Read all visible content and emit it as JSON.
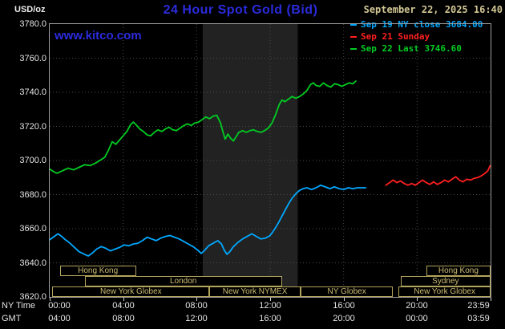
{
  "header": {
    "unit_label": "USD/oz",
    "title": "24 Hour Spot Gold (Bid)",
    "datetime": "September 22, 2025 16:40",
    "watermark": "www.kitco.com",
    "legend": [
      {
        "label": "Sep 19 NY close 3684.00",
        "color": "#00a8ff"
      },
      {
        "label": "Sep 21 Sunday",
        "color": "#ff1f1f"
      },
      {
        "label": "Sep 22 Last 3746.60",
        "color": "#00cc22"
      }
    ]
  },
  "colors": {
    "background": "#000000",
    "title_blue": "#2b2bdd",
    "link_blue": "#2b2bdd",
    "date_tan": "#d2c694",
    "axis_text": "#e4e4e4",
    "grid": "#4a4a4a",
    "plot_border": "#9f9f9f",
    "band": "#222222",
    "session_border": "#b3a45c",
    "session_text": "#cdbd72"
  },
  "axes": {
    "ny_label": "NY Time",
    "gmt_label": "GMT",
    "y_ticks": [
      {
        "label": "3780.0",
        "value": 3780
      },
      {
        "label": "3760.0",
        "value": 3760
      },
      {
        "label": "3740.0",
        "value": 3740
      },
      {
        "label": "3720.0",
        "value": 3720
      },
      {
        "label": "3700.0",
        "value": 3700
      },
      {
        "label": "3680.0",
        "value": 3680
      },
      {
        "label": "3660.0",
        "value": 3660
      },
      {
        "label": "3640.0",
        "value": 3640
      },
      {
        "label": "3620.0",
        "value": 3620
      }
    ],
    "x_ticks": [
      {
        "hour": 0,
        "ny": "00:00",
        "gmt": "04:00"
      },
      {
        "hour": 4,
        "ny": "04:00",
        "gmt": "08:00"
      },
      {
        "hour": 8,
        "ny": "08:00",
        "gmt": "12:00"
      },
      {
        "hour": 12,
        "ny": "12:00",
        "gmt": "16:00"
      },
      {
        "hour": 16,
        "ny": "16:00",
        "gmt": "20:00"
      },
      {
        "hour": 20,
        "ny": "20:00",
        "gmt": "00:00"
      },
      {
        "hour": 24,
        "ny": "23:59",
        "gmt": "03:59"
      }
    ]
  },
  "sessions": [
    {
      "row": 0,
      "label": "Hong Kong",
      "start_hour": 0.55,
      "end_hour": 4.7
    },
    {
      "row": 0,
      "label": "Hong Kong",
      "start_hour": 20.5,
      "end_hour": 24
    },
    {
      "row": 1,
      "label": "London",
      "start_hour": 1.9,
      "end_hour": 12.65
    },
    {
      "row": 1,
      "label": "Sydney",
      "start_hour": 19.1,
      "end_hour": 24
    },
    {
      "row": 2,
      "label": "New York Globex",
      "start_hour": 0.15,
      "end_hour": 8.7
    },
    {
      "row": 2,
      "label": "New York NYMEX",
      "start_hour": 8.7,
      "end_hour": 13.65
    },
    {
      "row": 2,
      "label": "NY Globex",
      "start_hour": 13.65,
      "end_hour": 18.7
    },
    {
      "row": 2,
      "label": "New York Globex",
      "start_hour": 19.0,
      "end_hour": 24
    }
  ],
  "chart_data": {
    "type": "line",
    "title": "24 Hour Spot Gold (Bid)",
    "ylabel": "USD/oz",
    "xlabel": "NY Time",
    "x_hours_range": [
      0,
      24
    ],
    "y_range": [
      3620,
      3780
    ],
    "y_tick_step": 20,
    "x_tick_step_hours": 4,
    "nymex_band_hours": [
      8.33,
      13.5
    ],
    "series": [
      {
        "name": "Sep 19 NY close",
        "close_value": 3684.0,
        "color": "#00a8ff",
        "points": [
          [
            0,
            3653.5
          ],
          [
            0.25,
            3655.5
          ],
          [
            0.45,
            3657
          ],
          [
            0.65,
            3655.5
          ],
          [
            0.85,
            3653.5
          ],
          [
            1.05,
            3652
          ],
          [
            1.3,
            3649.5
          ],
          [
            1.6,
            3646.5
          ],
          [
            1.9,
            3645
          ],
          [
            2.1,
            3644
          ],
          [
            2.3,
            3645.5
          ],
          [
            2.55,
            3648
          ],
          [
            2.8,
            3649.5
          ],
          [
            3.05,
            3648.5
          ],
          [
            3.3,
            3647
          ],
          [
            3.55,
            3648
          ],
          [
            3.8,
            3649
          ],
          [
            4.05,
            3650.5
          ],
          [
            4.3,
            3650
          ],
          [
            4.55,
            3651
          ],
          [
            4.8,
            3651.5
          ],
          [
            5.05,
            3653
          ],
          [
            5.3,
            3655
          ],
          [
            5.55,
            3654
          ],
          [
            5.8,
            3653
          ],
          [
            6.05,
            3654.5
          ],
          [
            6.3,
            3655.5
          ],
          [
            6.55,
            3656
          ],
          [
            6.8,
            3655
          ],
          [
            7.05,
            3654
          ],
          [
            7.3,
            3652.5
          ],
          [
            7.55,
            3651
          ],
          [
            7.8,
            3649.5
          ],
          [
            8.05,
            3647.5
          ],
          [
            8.25,
            3645.5
          ],
          [
            8.45,
            3647.5
          ],
          [
            8.65,
            3650
          ],
          [
            8.9,
            3651.5
          ],
          [
            9.15,
            3653
          ],
          [
            9.35,
            3651
          ],
          [
            9.5,
            3647.5
          ],
          [
            9.65,
            3645
          ],
          [
            9.8,
            3646.5
          ],
          [
            10,
            3649.5
          ],
          [
            10.25,
            3652
          ],
          [
            10.5,
            3654
          ],
          [
            10.75,
            3655.5
          ],
          [
            11,
            3657
          ],
          [
            11.25,
            3655.5
          ],
          [
            11.5,
            3654
          ],
          [
            11.75,
            3654.5
          ],
          [
            12,
            3656
          ],
          [
            12.2,
            3659
          ],
          [
            12.4,
            3662.5
          ],
          [
            12.6,
            3666.5
          ],
          [
            12.8,
            3670.5
          ],
          [
            13,
            3674.5
          ],
          [
            13.2,
            3678
          ],
          [
            13.4,
            3680.5
          ],
          [
            13.6,
            3682.5
          ],
          [
            13.8,
            3683.5
          ],
          [
            14,
            3684
          ],
          [
            14.25,
            3683
          ],
          [
            14.5,
            3684
          ],
          [
            14.75,
            3685.5
          ],
          [
            15,
            3684.5
          ],
          [
            15.25,
            3683.5
          ],
          [
            15.5,
            3684.5
          ],
          [
            15.75,
            3683.5
          ],
          [
            16,
            3683
          ],
          [
            16.25,
            3684
          ],
          [
            16.5,
            3683.5
          ],
          [
            16.75,
            3684
          ],
          [
            17,
            3684
          ],
          [
            17.2,
            3684
          ]
        ]
      },
      {
        "name": "Sep 21 Sunday",
        "color": "#ff1f1f",
        "points": [
          [
            18.3,
            3685.5
          ],
          [
            18.5,
            3687
          ],
          [
            18.7,
            3688.5
          ],
          [
            18.9,
            3687
          ],
          [
            19.1,
            3688
          ],
          [
            19.3,
            3686.5
          ],
          [
            19.5,
            3685.5
          ],
          [
            19.7,
            3686.5
          ],
          [
            19.9,
            3685.5
          ],
          [
            20.1,
            3687
          ],
          [
            20.3,
            3688.5
          ],
          [
            20.5,
            3687
          ],
          [
            20.7,
            3686
          ],
          [
            20.9,
            3687.5
          ],
          [
            21.1,
            3686
          ],
          [
            21.3,
            3687
          ],
          [
            21.5,
            3688.5
          ],
          [
            21.7,
            3687.5
          ],
          [
            21.9,
            3689
          ],
          [
            22.1,
            3690.5
          ],
          [
            22.3,
            3688.5
          ],
          [
            22.5,
            3687.5
          ],
          [
            22.7,
            3689
          ],
          [
            22.9,
            3688.5
          ],
          [
            23.1,
            3689.5
          ],
          [
            23.3,
            3690
          ],
          [
            23.5,
            3691
          ],
          [
            23.7,
            3692.5
          ],
          [
            23.85,
            3694
          ],
          [
            23.98,
            3697
          ]
        ]
      },
      {
        "name": "Sep 22 Last",
        "last_value": 3746.6,
        "color": "#00cc22",
        "points": [
          [
            0,
            3695
          ],
          [
            0.2,
            3693.5
          ],
          [
            0.4,
            3692.5
          ],
          [
            0.7,
            3694
          ],
          [
            1,
            3695.5
          ],
          [
            1.3,
            3694.5
          ],
          [
            1.6,
            3696
          ],
          [
            1.9,
            3697.5
          ],
          [
            2.2,
            3697
          ],
          [
            2.5,
            3698.5
          ],
          [
            2.8,
            3700.5
          ],
          [
            3,
            3702
          ],
          [
            3.2,
            3706
          ],
          [
            3.4,
            3711
          ],
          [
            3.6,
            3709.5
          ],
          [
            3.8,
            3712
          ],
          [
            4,
            3714.5
          ],
          [
            4.2,
            3717
          ],
          [
            4.4,
            3721
          ],
          [
            4.55,
            3722.5
          ],
          [
            4.7,
            3721
          ],
          [
            4.9,
            3718.5
          ],
          [
            5.1,
            3717
          ],
          [
            5.3,
            3715
          ],
          [
            5.5,
            3714.5
          ],
          [
            5.7,
            3716.5
          ],
          [
            5.9,
            3718
          ],
          [
            6.1,
            3717
          ],
          [
            6.3,
            3718.5
          ],
          [
            6.5,
            3719.5
          ],
          [
            6.7,
            3718
          ],
          [
            6.9,
            3717.5
          ],
          [
            7.1,
            3719
          ],
          [
            7.3,
            3720.5
          ],
          [
            7.5,
            3721.5
          ],
          [
            7.7,
            3720.5
          ],
          [
            7.9,
            3722
          ],
          [
            8.1,
            3722.5
          ],
          [
            8.3,
            3724
          ],
          [
            8.5,
            3725.5
          ],
          [
            8.7,
            3724.5
          ],
          [
            8.9,
            3726
          ],
          [
            9.1,
            3726.5
          ],
          [
            9.3,
            3722
          ],
          [
            9.45,
            3716
          ],
          [
            9.55,
            3712.5
          ],
          [
            9.7,
            3715.5
          ],
          [
            9.85,
            3713
          ],
          [
            10,
            3711.5
          ],
          [
            10.15,
            3714
          ],
          [
            10.3,
            3716.5
          ],
          [
            10.5,
            3717.5
          ],
          [
            10.7,
            3716.5
          ],
          [
            10.9,
            3717.5
          ],
          [
            11.1,
            3718
          ],
          [
            11.3,
            3717
          ],
          [
            11.5,
            3716.5
          ],
          [
            11.7,
            3717.5
          ],
          [
            11.9,
            3719
          ],
          [
            12.1,
            3722
          ],
          [
            12.3,
            3727
          ],
          [
            12.5,
            3733
          ],
          [
            12.65,
            3735.5
          ],
          [
            12.8,
            3734.5
          ],
          [
            13,
            3736
          ],
          [
            13.2,
            3737.5
          ],
          [
            13.4,
            3736.5
          ],
          [
            13.6,
            3737.5
          ],
          [
            13.8,
            3739
          ],
          [
            14,
            3741
          ],
          [
            14.2,
            3744.5
          ],
          [
            14.35,
            3745.5
          ],
          [
            14.5,
            3744
          ],
          [
            14.7,
            3743.5
          ],
          [
            14.9,
            3745.5
          ],
          [
            15.1,
            3744
          ],
          [
            15.3,
            3743
          ],
          [
            15.5,
            3745
          ],
          [
            15.7,
            3744.5
          ],
          [
            15.9,
            3743.5
          ],
          [
            16.1,
            3744.5
          ],
          [
            16.3,
            3745.5
          ],
          [
            16.5,
            3745
          ],
          [
            16.67,
            3746.6
          ]
        ]
      }
    ]
  }
}
